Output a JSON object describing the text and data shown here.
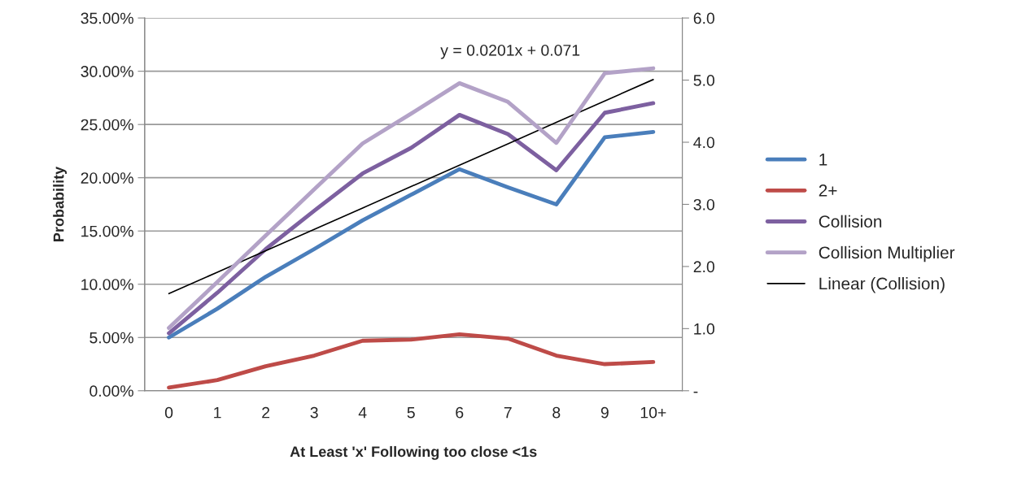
{
  "chart_data": {
    "type": "line",
    "xlabel": "At Least 'x' Following too close <1s",
    "ylabel": "Probability",
    "categories": [
      "0",
      "1",
      "2",
      "3",
      "4",
      "5",
      "6",
      "7",
      "8",
      "9",
      "10+"
    ],
    "series": [
      {
        "name": "1",
        "color": "#4a7ebb",
        "values": [
          5.0,
          7.7,
          10.7,
          13.3,
          16.0,
          18.4,
          20.8,
          19.1,
          17.5,
          23.8,
          24.3
        ]
      },
      {
        "name": "2+",
        "color": "#be4b48",
        "values": [
          0.3,
          1.0,
          2.3,
          3.3,
          4.7,
          4.8,
          5.3,
          4.9,
          3.3,
          2.5,
          2.7
        ]
      },
      {
        "name": "Collision",
        "color": "#7d60a0",
        "values": [
          5.4,
          9.2,
          13.3,
          16.9,
          20.4,
          22.8,
          25.9,
          24.1,
          20.7,
          26.1,
          27.0
        ]
      },
      {
        "name": "Collision Multiplier",
        "color": "#b3a2c7",
        "axis": "y2",
        "values": [
          1.01,
          1.75,
          2.5,
          3.24,
          3.98,
          4.46,
          4.95,
          4.65,
          3.99,
          5.11,
          5.19
        ]
      },
      {
        "name": "Linear (Collision)",
        "color": "#000000",
        "values": [
          9.12,
          11.13,
          13.14,
          15.15,
          17.16,
          19.17,
          21.18,
          23.19,
          25.2,
          27.21,
          29.22
        ]
      }
    ],
    "ylim": [
      0,
      35
    ],
    "yticks": [
      {
        "value": 0,
        "label": "0.00%"
      },
      {
        "value": 5,
        "label": "5.00%"
      },
      {
        "value": 10,
        "label": "10.00%"
      },
      {
        "value": 15,
        "label": "15.00%"
      },
      {
        "value": 20,
        "label": "20.00%"
      },
      {
        "value": 25,
        "label": "25.00%"
      },
      {
        "value": 30,
        "label": "30.00%"
      },
      {
        "value": 35,
        "label": "35.00%"
      }
    ],
    "y2lim": [
      0,
      6
    ],
    "y2ticks": [
      {
        "value": 0,
        "label": "-"
      },
      {
        "value": 1,
        "label": "1.0"
      },
      {
        "value": 2,
        "label": "2.0"
      },
      {
        "value": 3,
        "label": "3.0"
      },
      {
        "value": 4,
        "label": "4.0"
      },
      {
        "value": 5,
        "label": "5.0"
      },
      {
        "value": 6,
        "label": "6.0"
      }
    ],
    "annotations": [
      "y = 0.0201x + 0.071"
    ],
    "grid": "y",
    "legend": "right"
  }
}
